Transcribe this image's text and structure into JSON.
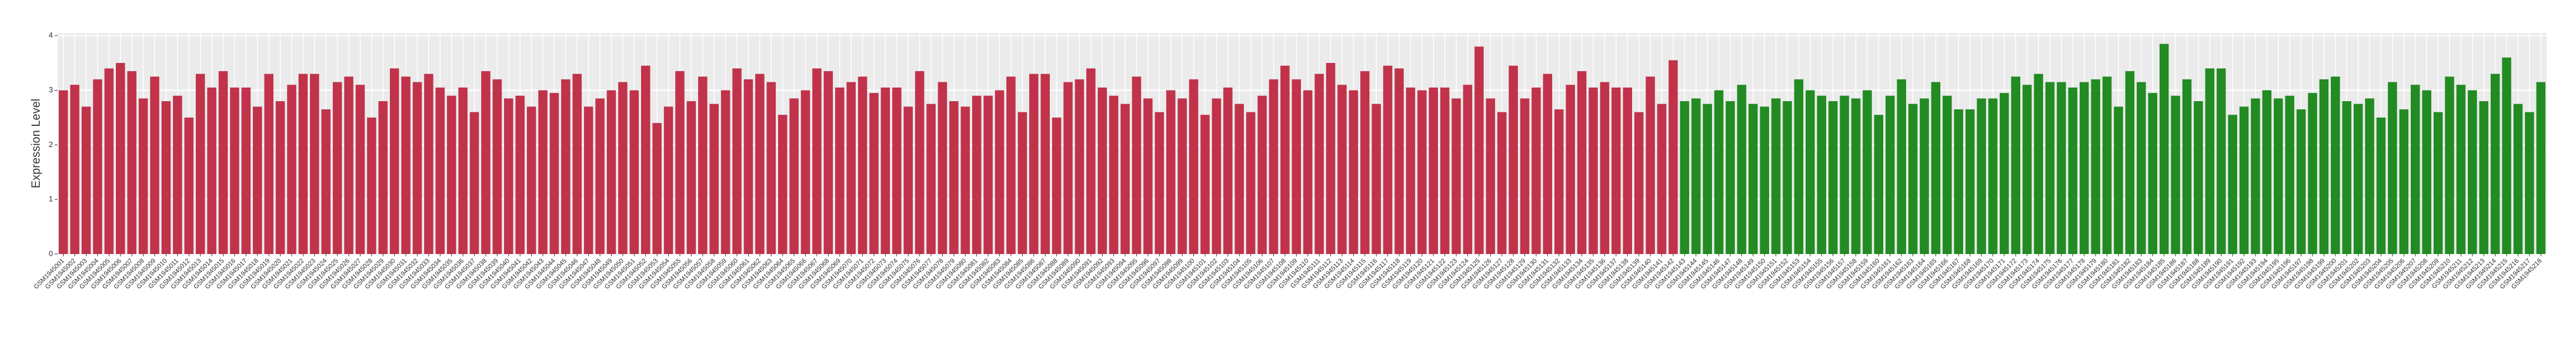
{
  "chart_data": {
    "type": "bar",
    "y_label": "Expression Level",
    "ylim": [
      0,
      4.05
    ],
    "yticks": [
      0,
      1,
      2,
      3,
      4
    ],
    "grid": true,
    "series": [
      {
        "color": "#c0334a",
        "categories": [
          "GSM1945001",
          "GSM1945002",
          "GSM1945003",
          "GSM1945004",
          "GSM1945005",
          "GSM1945006",
          "GSM1945007",
          "GSM1945008",
          "GSM1945009",
          "GSM1945010",
          "GSM1945011",
          "GSM1945012",
          "GSM1945013",
          "GSM1945014",
          "GSM1945015",
          "GSM1945016",
          "GSM1945017",
          "GSM1945018",
          "GSM1945019",
          "GSM1945020",
          "GSM1945021",
          "GSM1945022",
          "GSM1945023",
          "GSM1945024",
          "GSM1945025",
          "GSM1945026",
          "GSM1945027",
          "GSM1945028",
          "GSM1945029",
          "GSM1945030",
          "GSM1945031",
          "GSM1945032",
          "GSM1945033",
          "GSM1945034",
          "GSM1945035",
          "GSM1945036",
          "GSM1945037",
          "GSM1945038",
          "GSM1945039",
          "GSM1945040",
          "GSM1945041",
          "GSM1945042",
          "GSM1945043",
          "GSM1945044",
          "GSM1945045",
          "GSM1945046",
          "GSM1945047",
          "GSM1945048",
          "GSM1945049",
          "GSM1945050",
          "GSM1945051",
          "GSM1945052",
          "GSM1945053",
          "GSM1945054",
          "GSM1945055",
          "GSM1945056",
          "GSM1945057",
          "GSM1945058",
          "GSM1945059",
          "GSM1945060",
          "GSM1945061",
          "GSM1945062",
          "GSM1945063",
          "GSM1945064",
          "GSM1945065",
          "GSM1945066",
          "GSM1945067",
          "GSM1945068",
          "GSM1945069",
          "GSM1945070",
          "GSM1945071",
          "GSM1945072",
          "GSM1945073",
          "GSM1945074",
          "GSM1945075",
          "GSM1945076",
          "GSM1945077",
          "GSM1945078",
          "GSM1945079",
          "GSM1945080",
          "GSM1945081",
          "GSM1945082",
          "GSM1945083",
          "GSM1945084",
          "GSM1945085",
          "GSM1945086",
          "GSM1945087",
          "GSM1945088",
          "GSM1945089",
          "GSM1945090",
          "GSM1945091",
          "GSM1945092",
          "GSM1945093",
          "GSM1945094",
          "GSM1945095",
          "GSM1945096",
          "GSM1945097",
          "GSM1945098",
          "GSM1945099",
          "GSM1945100",
          "GSM1945101",
          "GSM1945102",
          "GSM1945103",
          "GSM1945104",
          "GSM1945105",
          "GSM1945106",
          "GSM1945107",
          "GSM1945108",
          "GSM1945109",
          "GSM1945110",
          "GSM1945111",
          "GSM1945112",
          "GSM1945113",
          "GSM1945114",
          "GSM1945115",
          "GSM1945116",
          "GSM1945117",
          "GSM1945118",
          "GSM1945119",
          "GSM1945120",
          "GSM1945121",
          "GSM1945122",
          "GSM1945123",
          "GSM1945124",
          "GSM1945125",
          "GSM1945126",
          "GSM1945127",
          "GSM1945128",
          "GSM1945129",
          "GSM1945130",
          "GSM1945131",
          "GSM1945132",
          "GSM1945133",
          "GSM1945134",
          "GSM1945135",
          "GSM1945136",
          "GSM1945137",
          "GSM1945138",
          "GSM1945139",
          "GSM1945140",
          "GSM1945141",
          "GSM1945142"
        ],
        "values": [
          3.0,
          3.1,
          2.7,
          3.2,
          3.4,
          3.5,
          3.35,
          2.85,
          3.25,
          2.8,
          2.9,
          2.5,
          3.3,
          3.05,
          3.35,
          3.05,
          3.05,
          2.7,
          3.3,
          2.8,
          3.1,
          3.3,
          3.3,
          2.65,
          3.15,
          3.25,
          3.1,
          2.5,
          2.8,
          3.4,
          3.25,
          3.15,
          3.3,
          3.05,
          2.9,
          3.05,
          2.6,
          3.35,
          3.2,
          2.85,
          2.9,
          2.7,
          3.0,
          2.95,
          3.2,
          3.3,
          2.7,
          2.85,
          3.0,
          3.15,
          3.0,
          3.45,
          2.4,
          2.7,
          3.35,
          2.8,
          3.25,
          2.75,
          3.0,
          3.4,
          3.2,
          3.3,
          3.15,
          2.55,
          2.85,
          3.0,
          3.4,
          3.35,
          3.05,
          3.15,
          3.25,
          2.95,
          3.05,
          3.05,
          2.7,
          3.35,
          2.75,
          3.15,
          2.8,
          2.7,
          2.9,
          2.9,
          3.0,
          3.25,
          2.6,
          3.3,
          3.3,
          2.5,
          3.15,
          3.2,
          3.4,
          3.05,
          2.9,
          2.75,
          3.25,
          2.85,
          2.6,
          3.0,
          2.85,
          3.2,
          2.55,
          2.85,
          3.05,
          2.75,
          2.6,
          2.9,
          3.2,
          3.45,
          3.2,
          3.0,
          3.3,
          3.5,
          3.1,
          3.0,
          3.35,
          2.75,
          3.45,
          3.4,
          3.05,
          3.0,
          3.05,
          3.05,
          2.85,
          3.1,
          3.8,
          2.85,
          2.6,
          3.45,
          2.85,
          3.05,
          3.3,
          2.65,
          3.1,
          3.35,
          3.05,
          3.15,
          3.05,
          3.05,
          2.6,
          3.25,
          2.75,
          3.55
        ]
      },
      {
        "color": "#228b22",
        "categories": [
          "GSM1945143",
          "GSM1945144",
          "GSM1945145",
          "GSM1945146",
          "GSM1945147",
          "GSM1945148",
          "GSM1945149",
          "GSM1945150",
          "GSM1945151",
          "GSM1945152",
          "GSM1945153",
          "GSM1945154",
          "GSM1945155",
          "GSM1945156",
          "GSM1945157",
          "GSM1945158",
          "GSM1945159",
          "GSM1945160",
          "GSM1945161",
          "GSM1945162",
          "GSM1945163",
          "GSM1945164",
          "GSM1945165",
          "GSM1945166",
          "GSM1945167",
          "GSM1945168",
          "GSM1945169",
          "GSM1945170",
          "GSM1945171",
          "GSM1945172",
          "GSM1945173",
          "GSM1945174",
          "GSM1945175",
          "GSM1945176",
          "GSM1945177",
          "GSM1945178",
          "GSM1945179",
          "GSM1945180",
          "GSM1945181",
          "GSM1945182",
          "GSM1945183",
          "GSM1945184",
          "GSM1945185",
          "GSM1945186",
          "GSM1945187",
          "GSM1945188",
          "GSM1945189",
          "GSM1945190",
          "GSM1945191",
          "GSM1945192",
          "GSM1945193",
          "GSM1945194",
          "GSM1945195",
          "GSM1945196",
          "GSM1945197",
          "GSM1945198",
          "GSM1945199",
          "GSM1945200",
          "GSM1945201",
          "GSM1945202",
          "GSM1945203",
          "GSM1945204",
          "GSM1945205",
          "GSM1945206",
          "GSM1945207",
          "GSM1945208",
          "GSM1945209",
          "GSM1945210",
          "GSM1945211",
          "GSM1945212",
          "GSM1945213",
          "GSM1945214",
          "GSM1945215",
          "GSM1945216",
          "GSM1945217",
          "GSM1945218"
        ],
        "values": [
          2.8,
          2.85,
          2.75,
          3.0,
          2.8,
          3.1,
          2.75,
          2.7,
          2.85,
          2.8,
          3.2,
          3.0,
          2.9,
          2.8,
          2.9,
          2.85,
          3.0,
          2.55,
          2.9,
          3.2,
          2.75,
          2.85,
          3.15,
          2.9,
          2.65,
          2.65,
          2.85,
          2.85,
          2.95,
          3.25,
          3.1,
          3.3,
          3.15,
          3.15,
          3.05,
          3.15,
          3.2,
          3.25,
          2.7,
          3.35,
          3.15,
          2.95,
          3.85,
          2.9,
          3.2,
          2.8,
          3.4,
          3.4,
          2.55,
          2.7,
          2.85,
          3.0,
          2.85,
          2.9,
          2.65,
          2.95,
          3.2,
          3.25,
          2.8,
          2.75,
          2.85,
          2.5,
          3.15,
          2.65,
          3.1,
          3.0,
          2.6,
          3.25,
          3.1,
          3.0,
          2.8,
          3.3,
          3.6,
          2.75,
          2.6,
          3.15
        ]
      }
    ]
  }
}
